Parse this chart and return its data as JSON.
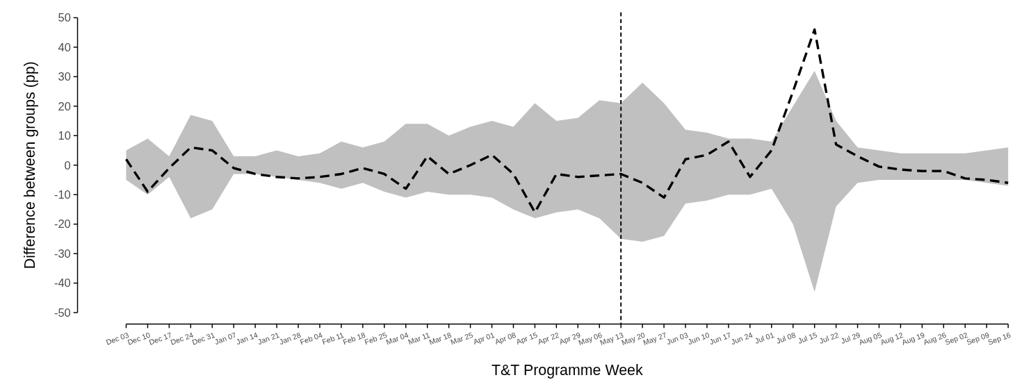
{
  "chart_data": {
    "type": "line",
    "xlabel": "T&T Programme Week",
    "ylabel": "Difference between groups (pp)",
    "categories": [
      "Dec 03",
      "Dec 10",
      "Dec 17",
      "Dec 24",
      "Dec 31",
      "Jan 07",
      "Jan 14",
      "Jan 21",
      "Jan 28",
      "Feb 04",
      "Feb 11",
      "Feb 18",
      "Feb 25",
      "Mar 04",
      "Mar 11",
      "Mar 18",
      "Mar 25",
      "Apr 01",
      "Apr 08",
      "Apr 15",
      "Apr 22",
      "Apr 29",
      "May 06",
      "May 13",
      "May 20",
      "May 27",
      "Jun 03",
      "Jun 10",
      "Jun 17",
      "Jun 24",
      "Jul 01",
      "Jul 08",
      "Jul 15",
      "Jul 22",
      "Jul 29",
      "Aug 05",
      "Aug 12",
      "Aug 19",
      "Aug 26",
      "Sep 02",
      "Sep 09",
      "Sep 16"
    ],
    "series": [
      {
        "color": "#000000",
        "line_style": "dashed",
        "values": [
          2,
          -9,
          -1,
          6,
          5,
          -1,
          -3,
          -4,
          -4.5,
          -4,
          -3,
          -1,
          -3,
          -8,
          3,
          -3,
          0,
          3.5,
          -3,
          -16,
          -3,
          -4,
          -3.5,
          -3,
          -6,
          -11,
          2,
          3.5,
          8,
          -4,
          5,
          25,
          46,
          7,
          3,
          -0.5,
          -1.5,
          -2,
          -2,
          -4.5,
          -5,
          -6
        ],
        "upper": [
          5,
          9,
          3,
          17,
          15,
          3,
          3,
          5,
          3,
          4,
          8,
          6,
          8,
          14,
          14,
          10,
          13,
          15,
          13,
          21,
          15,
          16,
          22,
          21,
          28,
          21,
          12,
          11,
          9,
          9,
          8,
          20,
          32,
          15,
          6,
          5,
          4,
          4,
          4,
          4,
          5,
          6
        ],
        "lower": [
          -5,
          -10,
          -4,
          -18,
          -15,
          -3,
          -3,
          -4,
          -5,
          -6,
          -8,
          -6,
          -9,
          -11,
          -9,
          -10,
          -10,
          -11,
          -15,
          -18,
          -16,
          -15,
          -18,
          -25,
          -26,
          -24,
          -13,
          -12,
          -10,
          -10,
          -8,
          -20,
          -43,
          -14,
          -6,
          -5,
          -5,
          -5,
          -5,
          -5,
          -6,
          -7
        ]
      }
    ],
    "ylim": [
      -50,
      50
    ],
    "yticks": [
      -50,
      -40,
      -30,
      -20,
      -10,
      0,
      10,
      20,
      30,
      40,
      50
    ],
    "ref_lines": [
      {
        "axis": "x",
        "value": "May 13",
        "color": "#000000",
        "line_style": "dashed"
      }
    ],
    "grid": false,
    "marker": "none"
  }
}
